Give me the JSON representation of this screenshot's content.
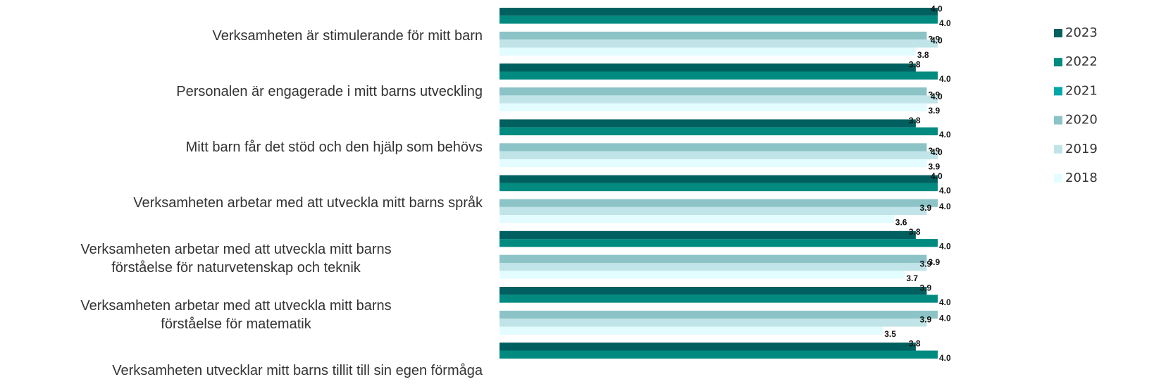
{
  "chart_data": {
    "type": "hbar",
    "categories": [
      "Verksamheten är stimulerande för mitt barn",
      "Personalen är engagerade i mitt barns utveckling",
      "Mitt barn får det stöd och den hjälp som behövs",
      "Verksamheten arbetar med att utveckla mitt barns språk",
      "Verksamheten arbetar med att utveckla mitt barns\nförståelse för naturvetenskap och teknik",
      "Verksamheten arbetar med att utveckla mitt barns\nförståelse för matematik",
      "Verksamheten utvecklar mitt barns tillit till sin egen förmåga"
    ],
    "xlim": [
      0,
      5
    ],
    "series": [
      {
        "name": "2023",
        "color": "#00605f",
        "values": [
          4.0,
          3.8,
          3.8,
          4.0,
          3.8,
          3.9,
          3.8
        ],
        "value_labels": [
          "4.0",
          "3.8",
          "3.8",
          "4.0",
          "3.8",
          "3.9",
          "3.8"
        ]
      },
      {
        "name": "2022",
        "color": "#008a80",
        "values": [
          4.0,
          4.0,
          4.0,
          4.0,
          4.0,
          4.0,
          4.0
        ],
        "value_labels": [
          "4.0",
          "4.0",
          "4.0",
          "4.0",
          "4.0",
          "4.0",
          "4.0"
        ]
      },
      {
        "name": "2021",
        "color": "#00a8a8",
        "values": [
          null,
          null,
          null,
          null,
          null,
          null,
          null
        ],
        "value_labels": [
          null,
          null,
          null,
          null,
          null,
          null,
          null
        ]
      },
      {
        "name": "2020",
        "color": "#8cc3c7",
        "values": [
          3.9,
          3.9,
          3.9,
          4.0,
          3.9,
          4.0,
          null
        ],
        "value_labels": [
          "3.9",
          "3.9",
          "3.9",
          "4.0",
          "3.9",
          "4.0",
          null
        ]
      },
      {
        "name": "2019",
        "color": "#c0e4e7",
        "values": [
          4.0,
          4.0,
          4.0,
          3.9,
          3.9,
          3.9,
          null
        ],
        "value_labels": [
          "4.0",
          "4.0",
          "4.0",
          "3.9",
          "3.9",
          "3.9",
          null
        ]
      },
      {
        "name": "2018",
        "color": "#e2fcff",
        "values": [
          3.8,
          3.9,
          3.9,
          3.6,
          3.7,
          3.5,
          null
        ],
        "value_labels": [
          "3.8",
          "3.9",
          "3.9",
          "3.6",
          "3.7",
          "3.5",
          null
        ]
      }
    ]
  }
}
